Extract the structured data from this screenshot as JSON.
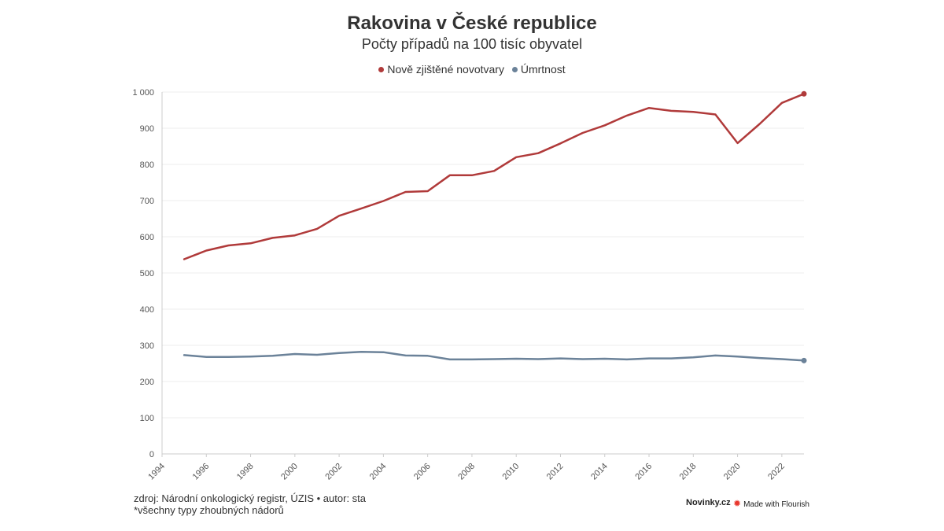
{
  "chart_data": {
    "type": "line",
    "title": "Rakovina v České republice",
    "subtitle": "Počty případů na 100 tisíc obyvatel",
    "xlabel": "",
    "ylabel": "",
    "xlim": [
      1994,
      2023
    ],
    "ylim": [
      0,
      1000
    ],
    "x_ticks": [
      "1994",
      "1996",
      "1998",
      "2000",
      "2002",
      "2004",
      "2006",
      "2008",
      "2010",
      "2012",
      "2014",
      "2016",
      "2018",
      "2020",
      "2022"
    ],
    "y_ticks": [
      "0",
      "100",
      "200",
      "300",
      "400",
      "500",
      "600",
      "700",
      "800",
      "900",
      "1 000"
    ],
    "grid": true,
    "legend_position": "top-center",
    "x": [
      1995,
      1996,
      1997,
      1998,
      1999,
      2000,
      2001,
      2002,
      2003,
      2004,
      2005,
      2006,
      2007,
      2008,
      2009,
      2010,
      2011,
      2012,
      2013,
      2014,
      2015,
      2016,
      2017,
      2018,
      2019,
      2020,
      2021,
      2022,
      2023
    ],
    "series": [
      {
        "name": "Nově zjištěné novotvary",
        "color": "#b03a3a",
        "values": [
          538,
          562,
          576,
          582,
          597,
          604,
          622,
          658,
          678,
          699,
          724,
          726,
          770,
          770,
          782,
          820,
          831,
          858,
          887,
          908,
          935,
          956,
          948,
          945,
          938,
          859,
          912,
          970,
          995
        ]
      },
      {
        "name": "Úmrtnost",
        "color": "#6b8299",
        "values": [
          273,
          268,
          268,
          269,
          271,
          276,
          274,
          279,
          282,
          281,
          272,
          271,
          261,
          261,
          262,
          263,
          262,
          264,
          262,
          263,
          261,
          264,
          264,
          267,
          272,
          269,
          265,
          262,
          258
        ]
      }
    ]
  },
  "footer": {
    "source": "zdroj: Národní onkologický registr, ÚZIS • autor: sta",
    "note": "*všechny typy zhoubných nádorů",
    "brand": "Novinky.cz",
    "flourish": "Made with Flourish"
  },
  "icons": {
    "flourish": "flourish-logo-icon"
  }
}
